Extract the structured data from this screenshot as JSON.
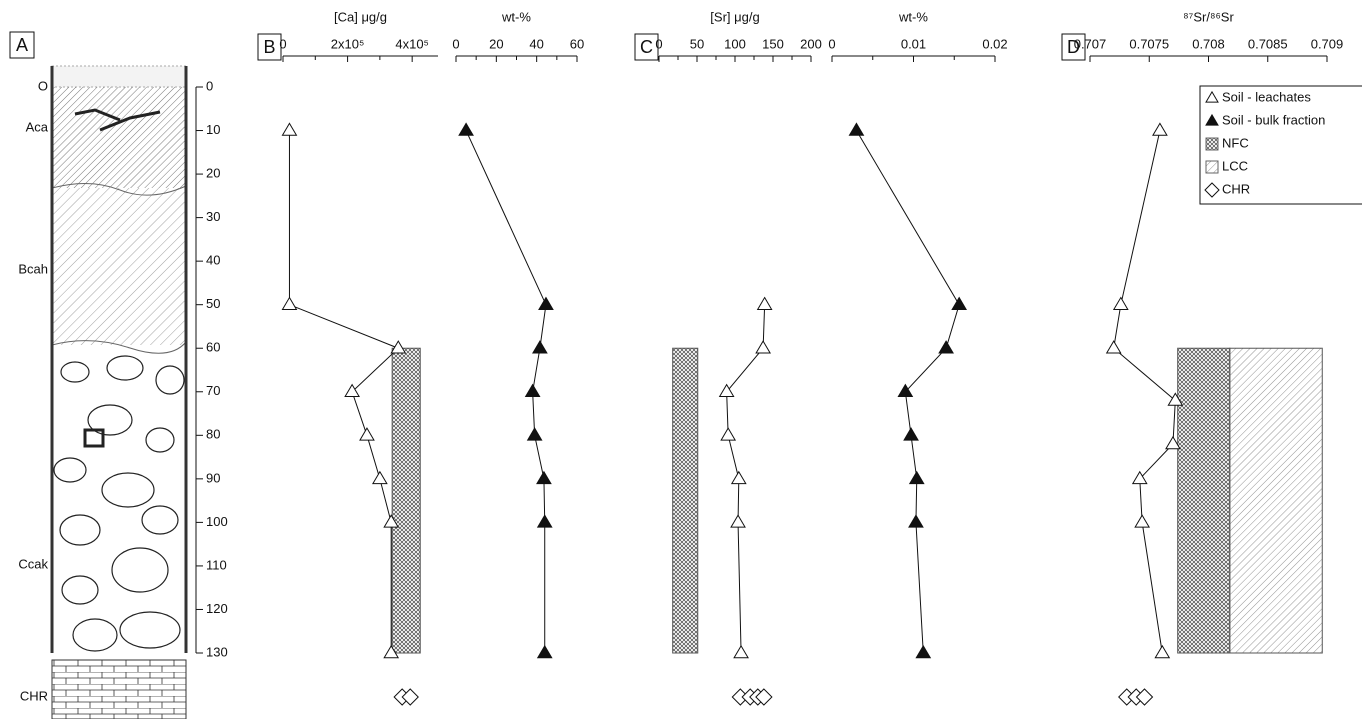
{
  "profile": {
    "label": "A",
    "horizons": [
      "O",
      "Aca",
      "Bcah",
      "Ccak",
      "CHR"
    ],
    "ylim": [
      0,
      130
    ],
    "yticks": [
      0,
      10,
      20,
      30,
      40,
      50,
      60,
      70,
      80,
      90,
      100,
      110,
      120,
      130
    ]
  },
  "legend": [
    {
      "label": "Soil - leachates",
      "marker": "open-triangle"
    },
    {
      "label": "Soil - bulk fraction",
      "marker": "filled-triangle"
    },
    {
      "label": "NFC",
      "marker": "NFC"
    },
    {
      "label": "LCC",
      "marker": "LCC"
    },
    {
      "label": "CHR",
      "marker": "diamond"
    }
  ],
  "chart_data": [
    {
      "type": "scatter",
      "panel": "B",
      "xlabel": "[Ca] μg/g",
      "xlim": [
        0,
        480000
      ],
      "xticks": [
        0,
        {
          "value": 200000,
          "label": "2x10⁵"
        },
        {
          "value": 400000,
          "label": "4x10⁵"
        }
      ],
      "xminor": [
        100000,
        300000
      ],
      "series": [
        {
          "marker": "open-triangle",
          "depth": [
            10,
            50,
            60,
            70,
            80,
            90,
            100,
            130
          ],
          "values": [
            20000,
            20000,
            357000,
            214000,
            260000,
            300000,
            335000,
            335000
          ]
        }
      ],
      "bars": [
        {
          "pattern": "NFC",
          "xrange": [
            338000,
            425000
          ],
          "depth": [
            60,
            130
          ]
        }
      ],
      "chr": [
        369000,
        394000
      ]
    },
    {
      "type": "scatter",
      "xlabel": "wt-%",
      "xlim": [
        0,
        60
      ],
      "xticks": [
        0,
        20,
        40,
        60
      ],
      "xminor": [
        10,
        30,
        50
      ],
      "series": [
        {
          "marker": "filled-triangle",
          "depth": [
            10,
            50,
            60,
            70,
            80,
            90,
            100,
            130
          ],
          "values": [
            5,
            44.6,
            41.6,
            38,
            39,
            43.6,
            44,
            44
          ]
        }
      ]
    },
    {
      "type": "scatter",
      "panel": "C",
      "xlabel": "[Sr] μg/g",
      "xlim": [
        0,
        200
      ],
      "xticks": [
        0,
        50,
        100,
        150,
        200
      ],
      "xminor": [
        25,
        75,
        125,
        175
      ],
      "series": [
        {
          "marker": "open-triangle",
          "depth": [
            50,
            60,
            70,
            80,
            90,
            100,
            130
          ],
          "values": [
            139,
            137,
            89,
            91,
            105,
            104,
            108
          ]
        }
      ],
      "bars": [
        {
          "pattern": "NFC",
          "xrange": [
            18,
            51
          ],
          "depth": [
            60,
            130
          ]
        }
      ],
      "chr": [
        107,
        120,
        130,
        138
      ]
    },
    {
      "type": "scatter",
      "xlabel": "wt-%",
      "xlim": [
        0,
        0.02
      ],
      "xticks": [
        0,
        0.01,
        0.02
      ],
      "xminor": [
        0.005,
        0.015
      ],
      "series": [
        {
          "marker": "filled-triangle",
          "depth": [
            10,
            50,
            60,
            70,
            80,
            90,
            100,
            130
          ],
          "values": [
            0.003,
            0.0156,
            0.014,
            0.009,
            0.0097,
            0.0104,
            0.0103,
            0.0112
          ]
        }
      ]
    },
    {
      "type": "scatter",
      "panel": "D",
      "xlabel": "⁸⁷Sr/⁸⁶Sr",
      "xlim": [
        0.707,
        0.709
      ],
      "xticks": [
        0.707,
        0.7075,
        0.708,
        0.7085,
        0.709
      ],
      "series": [
        {
          "marker": "open-triangle",
          "depth": [
            10,
            50,
            60,
            72,
            82,
            90,
            100,
            130
          ],
          "values": [
            0.70759,
            0.70726,
            0.7072,
            0.70772,
            0.7077,
            0.70742,
            0.70744,
            0.70761
          ]
        }
      ],
      "bars": [
        {
          "pattern": "NFC",
          "xrange": [
            0.70774,
            0.70818
          ],
          "depth": [
            60,
            130
          ]
        },
        {
          "pattern": "LCC",
          "xrange": [
            0.70818,
            0.70896
          ],
          "depth": [
            60,
            130
          ]
        }
      ],
      "chr": [
        0.70731,
        0.70739,
        0.70746
      ]
    }
  ]
}
